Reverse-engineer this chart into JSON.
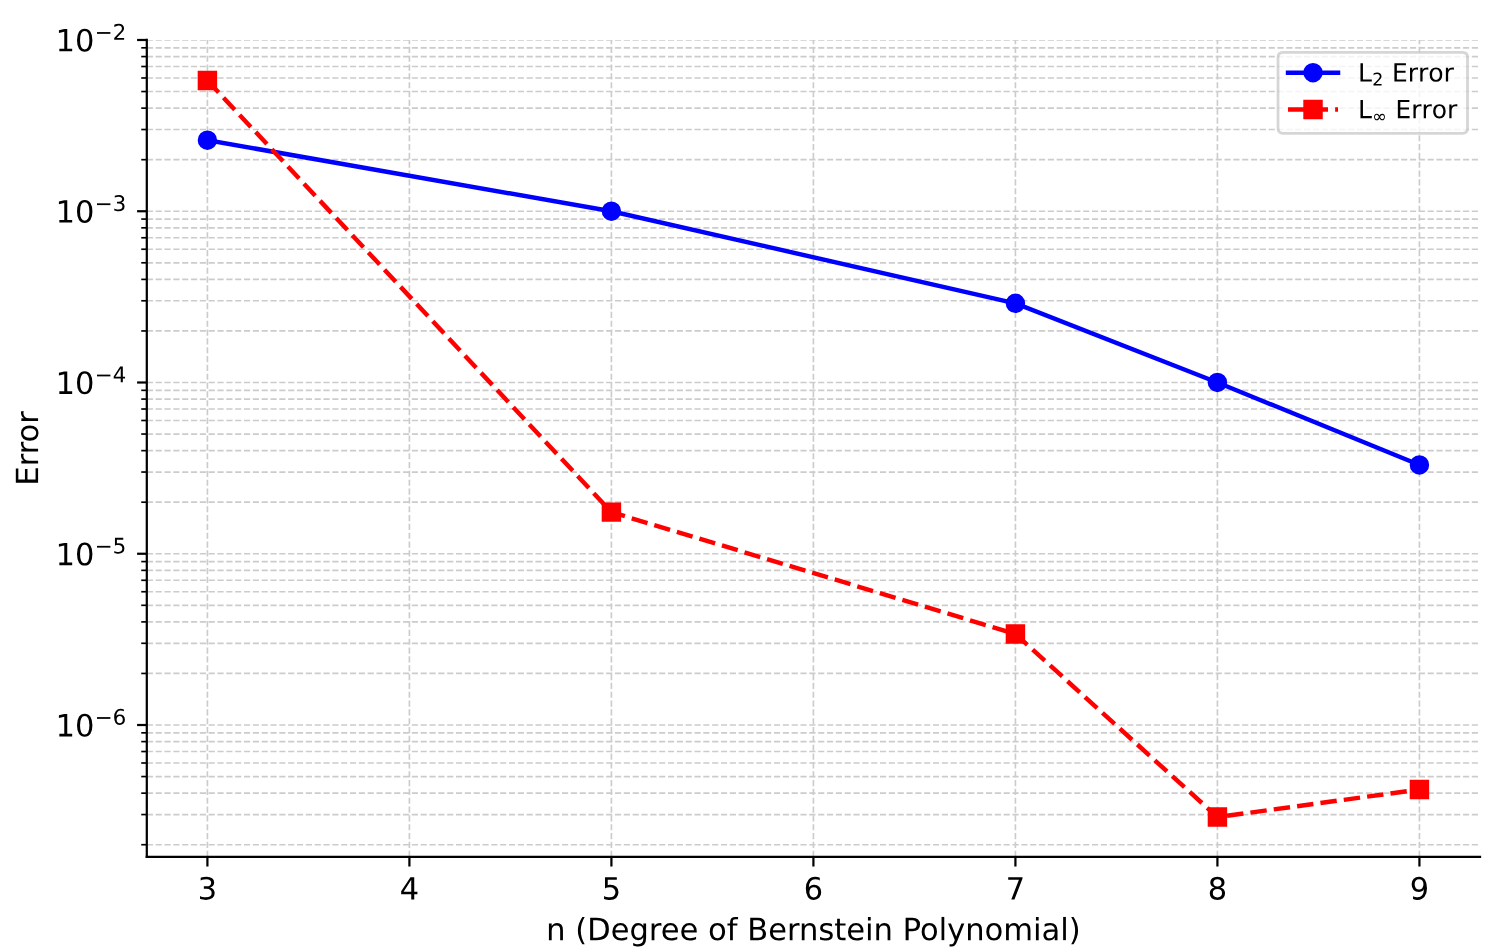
{
  "chart_data": {
    "type": "line",
    "xlabel": "n (Degree of Bernstein Polynomial)",
    "ylabel": "Error",
    "x": [
      3,
      5,
      7,
      8,
      9
    ],
    "series": [
      {
        "name": "L$_{2}$ Error",
        "color": "#0000ff",
        "values": [
          0.0026,
          0.001,
          0.00029,
          0.0001,
          3.3e-05
        ],
        "marker": "circle",
        "line_style": "solid"
      },
      {
        "name": "L$_{∞}$ Error",
        "color": "#ff0000",
        "values": [
          0.0058,
          1.75e-05,
          3.4e-06,
          2.9e-07,
          4.2e-07
        ],
        "marker": "square",
        "line_style": "dashed"
      }
    ],
    "log": "y",
    "xlim": [
      2.7,
      9.3
    ],
    "xticks": [
      3,
      4,
      5,
      6,
      7,
      8,
      9
    ],
    "ylim": [
      1.7e-07,
      0.01
    ],
    "yticks": [
      {
        "value": 0.01,
        "label": "10$^{−2}$"
      },
      {
        "value": 0.001,
        "label": "10$^{−3}$"
      },
      {
        "value": 0.0001,
        "label": "10$^{−4}$"
      },
      {
        "value": 1e-05,
        "label": "10$^{−5}$"
      },
      {
        "value": 1e-06,
        "label": "10$^{−6}$"
      }
    ],
    "grid": true,
    "legend": "top right"
  }
}
